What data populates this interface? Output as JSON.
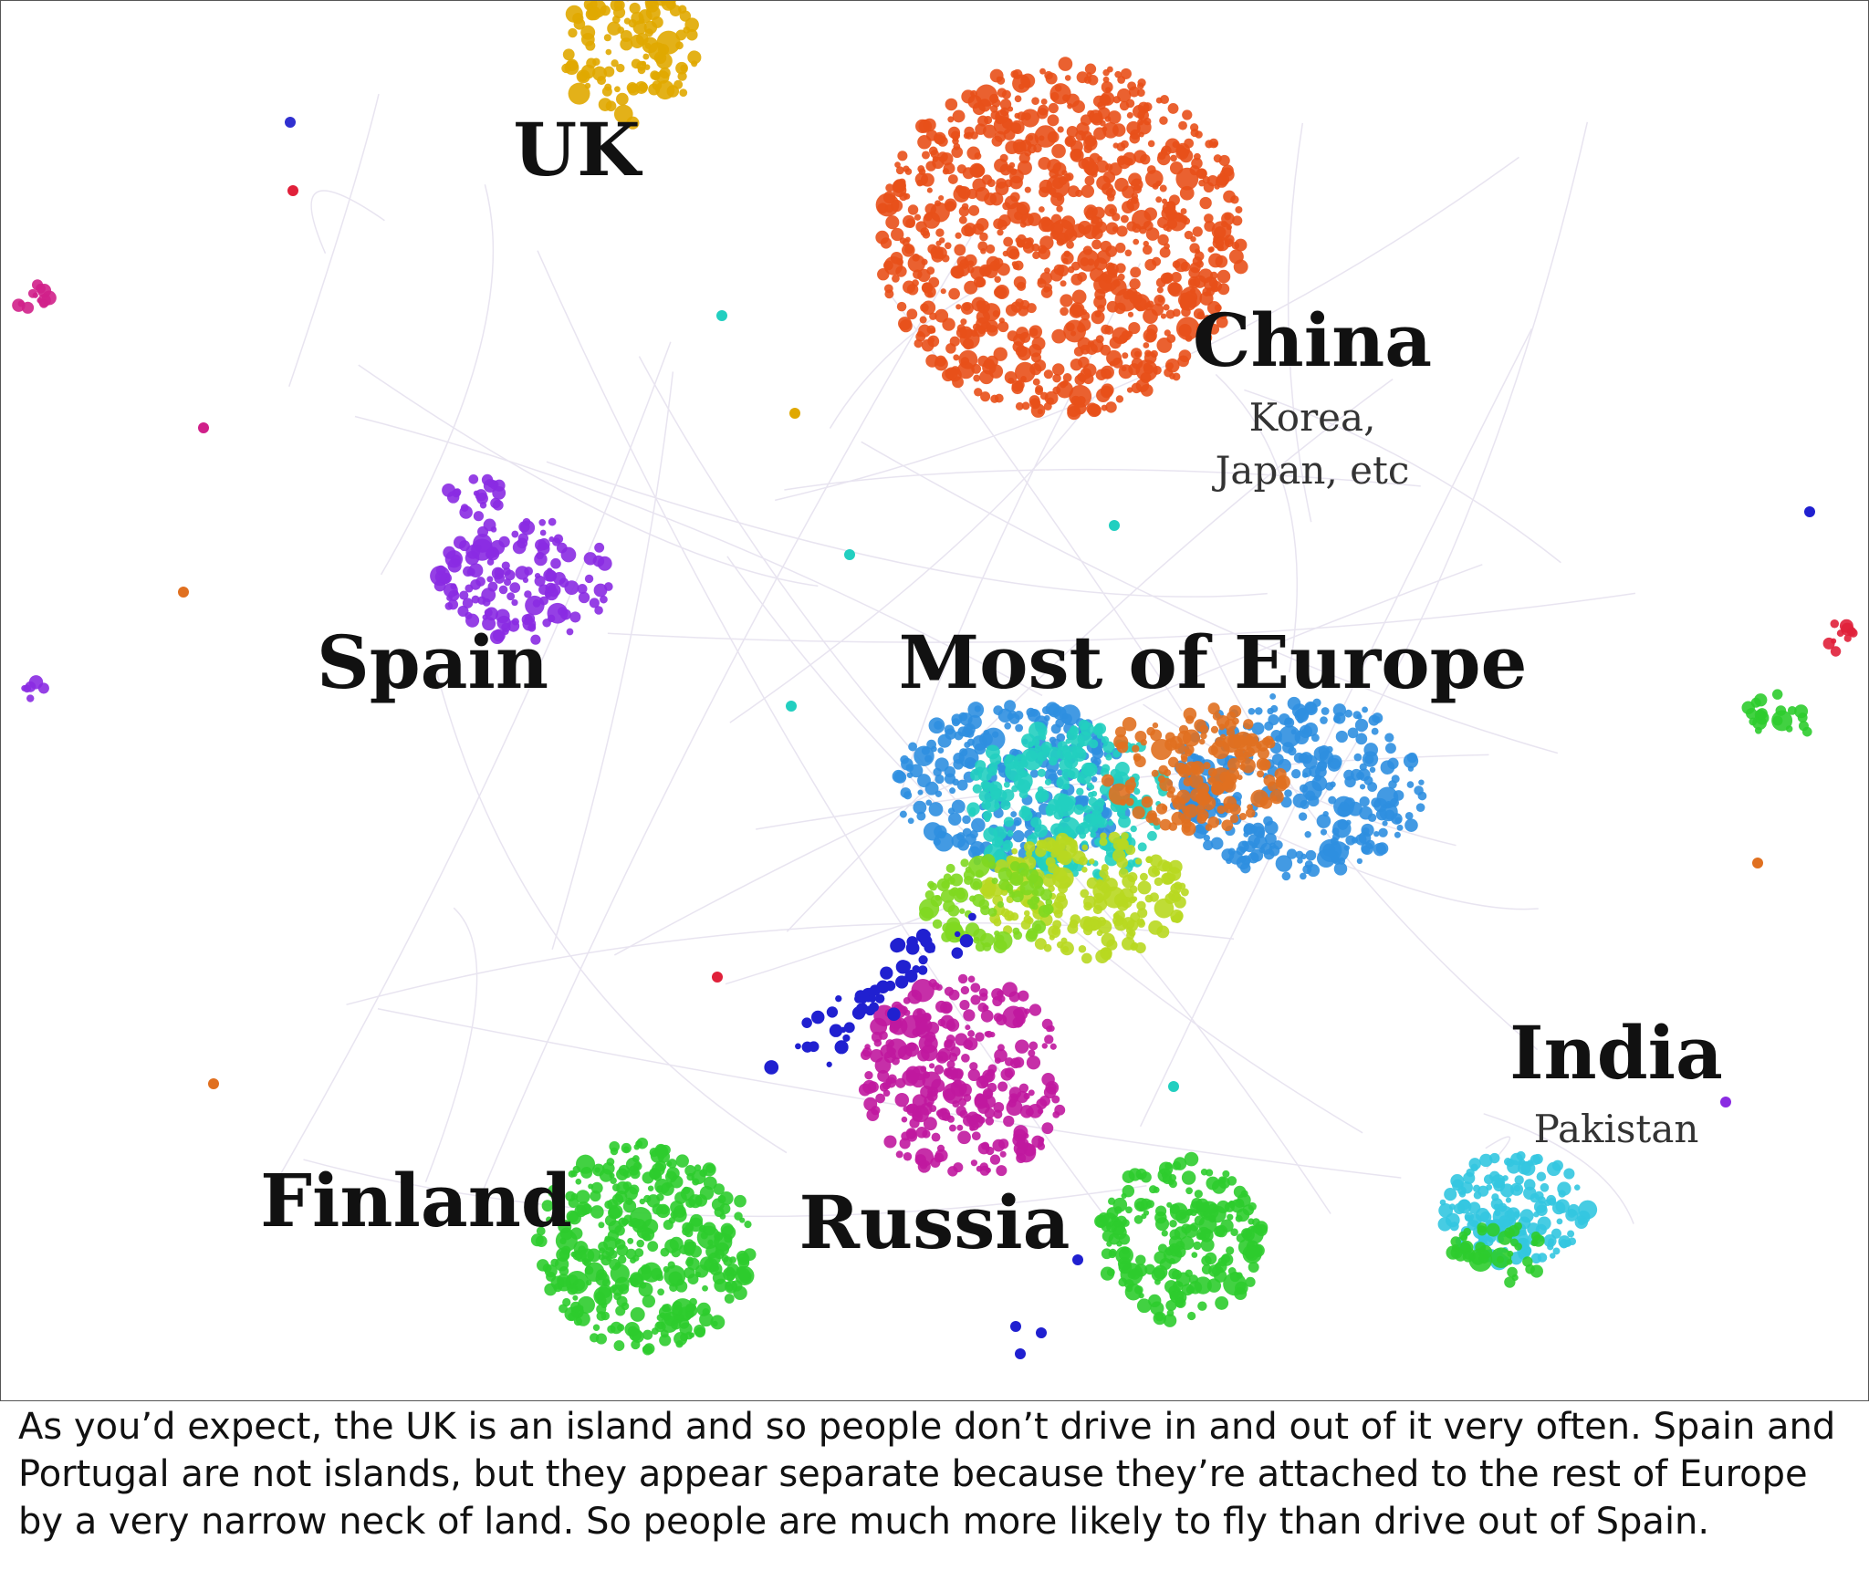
{
  "labels": {
    "uk": "UK",
    "china": "China",
    "china_note": "Korea, Japan, etc",
    "spain": "Spain",
    "europe": "Most of Europe",
    "india": "India",
    "india_note": "Pakistan",
    "finland": "Finland",
    "russia": "Russia"
  },
  "caption": "As you’d expect, the UK is an island and so people don’t drive in and out of it very often. Spain and Portugal are not islands, but they appear separate because they’re attached to the rest of Europe by a very narrow neck of land. So people are much more likely to fly than drive out of Spain."
}
